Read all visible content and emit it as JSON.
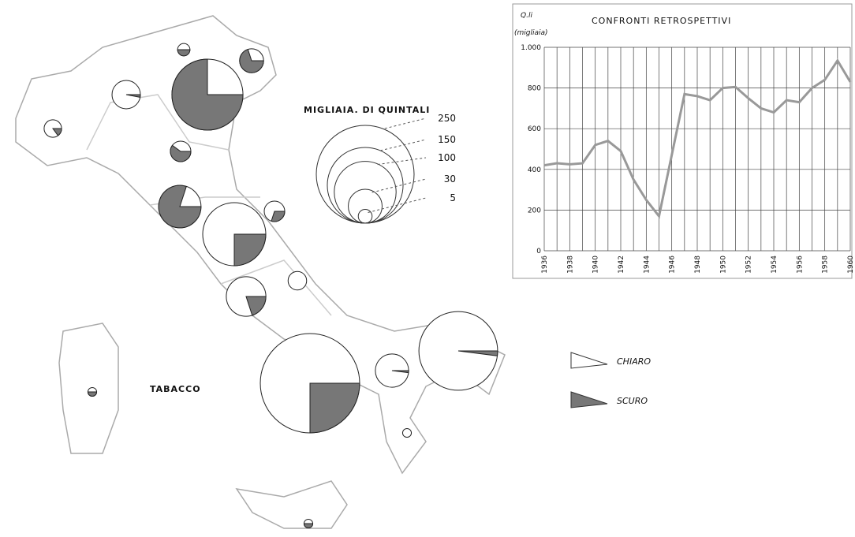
{
  "map": {
    "title": "TABACCO",
    "size_legend_title": "MIGLIAIA. DI QUINTALI",
    "size_legend": [
      250,
      150,
      100,
      30,
      5
    ],
    "legend": {
      "light": "CHIARO",
      "dark": "SCURO"
    },
    "pies": [
      {
        "total": 8,
        "dark_share": 0.15
      },
      {
        "total": 21,
        "dark_share": 0.03
      },
      {
        "total": 4,
        "dark_share": 0.5
      },
      {
        "total": 132,
        "dark_share": 0.75
      },
      {
        "total": 15,
        "dark_share": 0.7
      },
      {
        "total": 11,
        "dark_share": 0.6
      },
      {
        "total": 47,
        "dark_share": 0.8
      },
      {
        "total": 11,
        "dark_share": 0.3
      },
      {
        "total": 104,
        "dark_share": 0.25
      },
      {
        "total": 41,
        "dark_share": 0.2
      },
      {
        "total": 9,
        "dark_share": 0
      },
      {
        "total": 258,
        "dark_share": 0.25
      },
      {
        "total": 29,
        "dark_share": 0.02
      },
      {
        "total": 162,
        "dark_share": 0.02
      },
      {
        "total": 2,
        "dark_share": 0
      },
      {
        "total": 2,
        "dark_share": 0.5
      },
      {
        "total": 2,
        "dark_share": 0.5
      }
    ]
  },
  "chart_data": {
    "type": "line",
    "title": "CONFRONTI RETROSPETTIVI",
    "y_label": "Q.li",
    "y_sublabel": "(migliaia)",
    "x": [
      1936,
      1937,
      1938,
      1939,
      1940,
      1941,
      1942,
      1943,
      1944,
      1945,
      1946,
      1947,
      1948,
      1949,
      1950,
      1951,
      1952,
      1953,
      1954,
      1955,
      1956,
      1957,
      1958,
      1959,
      1960
    ],
    "series": [
      {
        "color": "#999999",
        "values": [
          420,
          430,
          425,
          430,
          520,
          540,
          490,
          350,
          250,
          170,
          470,
          770,
          760,
          740,
          800,
          805,
          750,
          700,
          680,
          740,
          730,
          800,
          840,
          935,
          830
        ]
      }
    ],
    "xlim": [
      1936,
      1960
    ],
    "xticks": [
      1936,
      1938,
      1940,
      1942,
      1944,
      1946,
      1948,
      1950,
      1952,
      1954,
      1956,
      1958,
      1960
    ],
    "ylim": [
      0,
      1000
    ],
    "yticks": [
      0,
      200,
      400,
      600,
      800,
      {
        "value": 1000,
        "label": "1.000"
      }
    ],
    "grid": true
  }
}
